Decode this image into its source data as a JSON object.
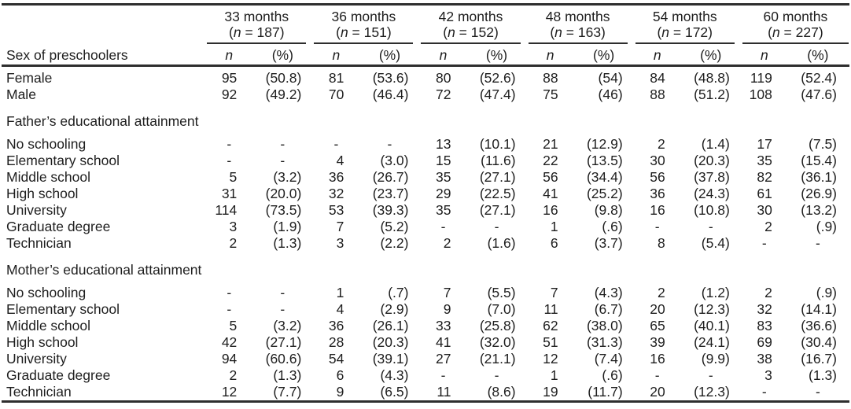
{
  "table": {
    "stub_header": "Sex of preschoolers",
    "sub_headers": {
      "n": "n",
      "pct": "(%)"
    },
    "col_groups": [
      {
        "label": "33 months",
        "n_label": "(n = 187)"
      },
      {
        "label": "36 months",
        "n_label": "(n = 151)"
      },
      {
        "label": "42 months",
        "n_label": "(n = 152)"
      },
      {
        "label": "48 months",
        "n_label": "(n = 163)"
      },
      {
        "label": "54 months",
        "n_label": "(n = 172)"
      },
      {
        "label": "60 months",
        "n_label": "(n = 227)"
      }
    ],
    "sections": [
      {
        "header": "",
        "rows": [
          {
            "label": "Female",
            "values": [
              "95",
              "(50.8)",
              "81",
              "(53.6)",
              "80",
              "(52.6)",
              "88",
              "(54)",
              "84",
              "(48.8)",
              "119",
              "(52.4)"
            ]
          },
          {
            "label": "Male",
            "values": [
              "92",
              "(49.2)",
              "70",
              "(46.4)",
              "72",
              "(47.4)",
              "75",
              "(46)",
              "88",
              "(51.2)",
              "108",
              "(47.6)"
            ]
          }
        ]
      },
      {
        "header": "Father’s educational attainment",
        "rows": [
          {
            "label": "No schooling",
            "values": [
              "-",
              "-",
              "-",
              "-",
              "13",
              "(10.1)",
              "21",
              "(12.9)",
              "2",
              "(1.4)",
              "17",
              "(7.5)"
            ]
          },
          {
            "label": "Elementary school",
            "values": [
              "-",
              "-",
              "4",
              "(3.0)",
              "15",
              "(11.6)",
              "22",
              "(13.5)",
              "30",
              "(20.3)",
              "35",
              "(15.4)"
            ]
          },
          {
            "label": "Middle school",
            "values": [
              "5",
              "(3.2)",
              "36",
              "(26.7)",
              "35",
              "(27.1)",
              "56",
              "(34.4)",
              "56",
              "(37.8)",
              "82",
              "(36.1)"
            ]
          },
          {
            "label": "High school",
            "values": [
              "31",
              "(20.0)",
              "32",
              "(23.7)",
              "29",
              "(22.5)",
              "41",
              "(25.2)",
              "36",
              "(24.3)",
              "61",
              "(26.9)"
            ]
          },
          {
            "label": "University",
            "values": [
              "114",
              "(73.5)",
              "53",
              "(39.3)",
              "35",
              "(27.1)",
              "16",
              "(9.8)",
              "16",
              "(10.8)",
              "30",
              "(13.2)"
            ]
          },
          {
            "label": "Graduate degree",
            "values": [
              "3",
              "(1.9)",
              "7",
              "(5.2)",
              "-",
              "-",
              "1",
              "(.6)",
              "-",
              "-",
              "2",
              "(.9)"
            ]
          },
          {
            "label": "Technician",
            "values": [
              "2",
              "(1.3)",
              "3",
              "(2.2)",
              "2",
              "(1.6)",
              "6",
              "(3.7)",
              "8",
              "(5.4)",
              "-",
              "-"
            ]
          }
        ]
      },
      {
        "header": "Mother’s educational attainment",
        "rows": [
          {
            "label": "No schooling",
            "values": [
              "-",
              "-",
              "1",
              "(.7)",
              "7",
              "(5.5)",
              "7",
              "(4.3)",
              "2",
              "(1.2)",
              "2",
              "(.9)"
            ]
          },
          {
            "label": "Elementary school",
            "values": [
              "-",
              "-",
              "4",
              "(2.9)",
              "9",
              "(7.0)",
              "11",
              "(6.7)",
              "20",
              "(12.3)",
              "32",
              "(14.1)"
            ]
          },
          {
            "label": "Middle school",
            "values": [
              "5",
              "(3.2)",
              "36",
              "(26.1)",
              "33",
              "(25.8)",
              "62",
              "(38.0)",
              "65",
              "(40.1)",
              "83",
              "(36.6)"
            ]
          },
          {
            "label": "High school",
            "values": [
              "42",
              "(27.1)",
              "28",
              "(20.3)",
              "41",
              "(32.0)",
              "51",
              "(31.3)",
              "39",
              "(24.1)",
              "69",
              "(30.4)"
            ]
          },
          {
            "label": "University",
            "values": [
              "94",
              "(60.6)",
              "54",
              "(39.1)",
              "27",
              "(21.1)",
              "12",
              "(7.4)",
              "16",
              "(9.9)",
              "38",
              "(16.7)"
            ]
          },
          {
            "label": "Graduate degree",
            "values": [
              "2",
              "(1.3)",
              "6",
              "(4.3)",
              "-",
              "-",
              "1",
              "(.6)",
              "-",
              "-",
              "3",
              "(1.3)"
            ]
          },
          {
            "label": "Technician",
            "values": [
              "12",
              "(7.7)",
              "9",
              "(6.5)",
              "11",
              "(8.6)",
              "19",
              "(11.7)",
              "20",
              "(12.3)",
              "-",
              "-"
            ]
          }
        ]
      }
    ],
    "colors": {
      "text": "#1e1e1e",
      "rule": "#2e2e2e"
    }
  }
}
